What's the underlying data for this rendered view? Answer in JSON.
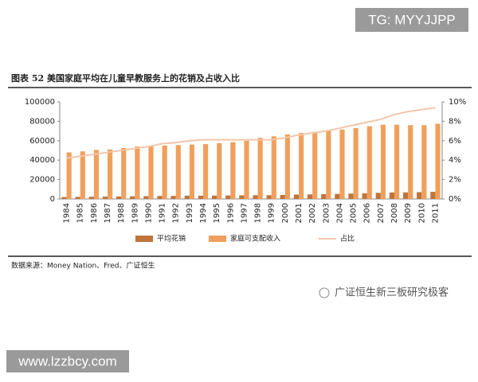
{
  "watermark_top": "TG: MYYJJPP",
  "chart_data": {
    "type": "bar",
    "title": "图表 52 美国家庭平均在儿童早教服务上的花销及占收入比",
    "categories": [
      "1984",
      "1985",
      "1986",
      "1987",
      "1988",
      "1989",
      "1990",
      "1991",
      "1992",
      "1993",
      "1994",
      "1995",
      "1996",
      "1997",
      "1998",
      "1999",
      "2000",
      "2001",
      "2002",
      "2003",
      "2004",
      "2005",
      "2006",
      "2007",
      "2008",
      "2009",
      "2010",
      "2011"
    ],
    "series": [
      {
        "name": "平均花销",
        "color": "#c0743c",
        "type": "bar",
        "values": [
          2000,
          2200,
          2300,
          2400,
          2600,
          2800,
          2900,
          3100,
          3200,
          3400,
          3400,
          3500,
          3600,
          3700,
          3800,
          3900,
          4200,
          4500,
          4700,
          4900,
          5200,
          5500,
          5900,
          6300,
          6700,
          6800,
          7000,
          7300
        ]
      },
      {
        "name": "家庭可支配收入",
        "color": "#f0a05c",
        "type": "bar",
        "values": [
          48000,
          49000,
          50500,
          51000,
          52500,
          54000,
          54000,
          55000,
          55500,
          56000,
          56500,
          57500,
          58500,
          60000,
          63000,
          64500,
          66500,
          68000,
          69000,
          70000,
          71500,
          73000,
          75000,
          76500,
          76500,
          76000,
          76000,
          77500
        ]
      },
      {
        "name": "占比",
        "color": "#f2c6ab",
        "type": "line",
        "axis": "y2",
        "values": [
          4.2,
          4.4,
          4.6,
          4.8,
          5.0,
          5.2,
          5.4,
          5.7,
          5.8,
          6.0,
          6.1,
          6.1,
          6.1,
          6.1,
          6.1,
          6.1,
          6.3,
          6.6,
          6.8,
          7.0,
          7.3,
          7.6,
          7.9,
          8.2,
          8.7,
          9.0,
          9.2,
          9.4
        ]
      }
    ],
    "ylim": [
      0,
      100000
    ],
    "yticks": [
      0,
      20000,
      40000,
      60000,
      80000,
      100000
    ],
    "y2lim": [
      0,
      10
    ],
    "y2ticks": [
      {
        "value": 0,
        "label": "0%"
      },
      {
        "value": 2,
        "label": "2%"
      },
      {
        "value": 4,
        "label": "4%"
      },
      {
        "value": 6,
        "label": "6%"
      },
      {
        "value": 8,
        "label": "8%"
      },
      {
        "value": 10,
        "label": "10%"
      }
    ],
    "grid": false,
    "legend": "bottom"
  },
  "source": "数据来源：Money Nation、Fred、广证恒生",
  "logo": "广证恒生新三板研究极客",
  "watermark_bottom": "www.lzzbcy.com"
}
